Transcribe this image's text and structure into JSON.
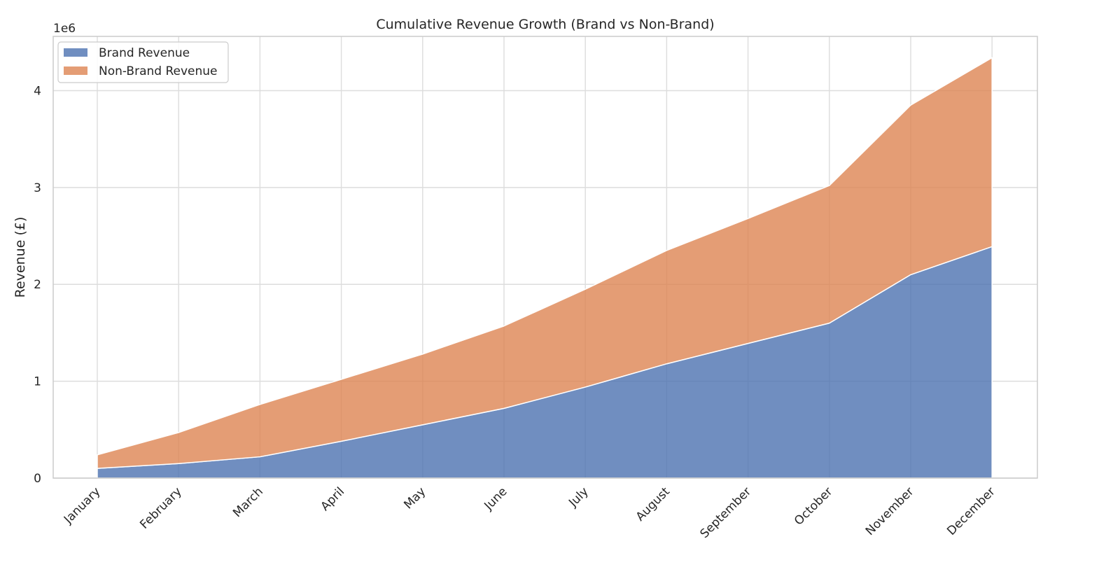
{
  "chart_data": {
    "type": "area",
    "stacked": true,
    "title": "Cumulative Revenue Growth (Brand vs Non-Brand)",
    "xlabel": "",
    "ylabel": "Revenue (£)",
    "y_scale_label": "1e6",
    "ylim": [
      0,
      4560000
    ],
    "y_ticks": [
      0,
      1000000,
      2000000,
      3000000,
      4000000
    ],
    "y_tick_labels": [
      "0",
      "1",
      "2",
      "3",
      "4"
    ],
    "categories": [
      "January",
      "February",
      "March",
      "April",
      "May",
      "June",
      "July",
      "August",
      "September",
      "October",
      "November",
      "December"
    ],
    "series": [
      {
        "name": "Brand Revenue",
        "color": "#4c72b0",
        "values": [
          100000,
          150000,
          220000,
          380000,
          550000,
          720000,
          940000,
          1180000,
          1390000,
          1600000,
          2100000,
          2390000
        ]
      },
      {
        "name": "Non-Brand Revenue",
        "color": "#dd8452",
        "values": [
          140000,
          320000,
          540000,
          640000,
          730000,
          850000,
          1010000,
          1170000,
          1290000,
          1420000,
          1750000,
          1950000
        ]
      }
    ],
    "grid": true,
    "legend_position": "top-left"
  }
}
